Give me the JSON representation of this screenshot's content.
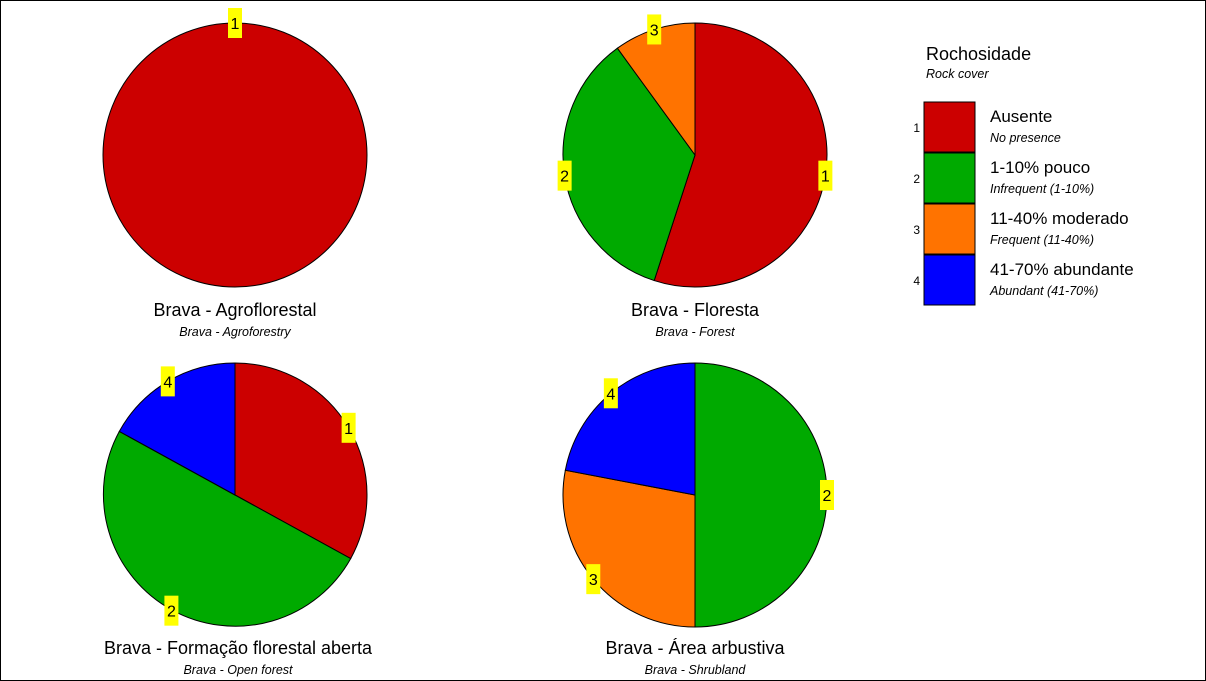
{
  "colors": {
    "cat1": "#cc0000",
    "cat2": "#00aa00",
    "cat3": "#ff7300",
    "cat4": "#0000ff",
    "label_bg": "#ffff00"
  },
  "legend": {
    "title": "Rochosidade",
    "subtitle": "Rock cover",
    "items": [
      {
        "number": "1",
        "name": "Ausente",
        "desc": "No presence",
        "color_key": "cat1"
      },
      {
        "number": "2",
        "name": "1-10% pouco",
        "desc": "Infrequent (1-10%)",
        "color_key": "cat2"
      },
      {
        "number": "3",
        "name": "11-40% moderado",
        "desc": "Frequent (11-40%)",
        "color_key": "cat3"
      },
      {
        "number": "4",
        "name": "41-70% abundante",
        "desc": "Abundant (41-70%)",
        "color_key": "cat4"
      }
    ]
  },
  "chart_data": [
    {
      "type": "pie",
      "title": "Brava - Agroflorestal",
      "subtitle": "Brava - Agroforestry",
      "slices": [
        {
          "category": "1",
          "value": 100
        }
      ]
    },
    {
      "type": "pie",
      "title": "Brava - Floresta",
      "subtitle": "Brava - Forest",
      "slices": [
        {
          "category": "1",
          "value": 55
        },
        {
          "category": "2",
          "value": 35
        },
        {
          "category": "3",
          "value": 10
        }
      ]
    },
    {
      "type": "pie",
      "title": "Brava - Formação florestal aberta",
      "subtitle": "Brava - Open forest",
      "slices": [
        {
          "category": "1",
          "value": 33
        },
        {
          "category": "2",
          "value": 50
        },
        {
          "category": "4",
          "value": 17
        }
      ]
    },
    {
      "type": "pie",
      "title": "Brava - Área arbustiva",
      "subtitle": "Brava - Shrubland",
      "slices": [
        {
          "category": "2",
          "value": 50
        },
        {
          "category": "3",
          "value": 28
        },
        {
          "category": "4",
          "value": 22
        }
      ]
    }
  ]
}
